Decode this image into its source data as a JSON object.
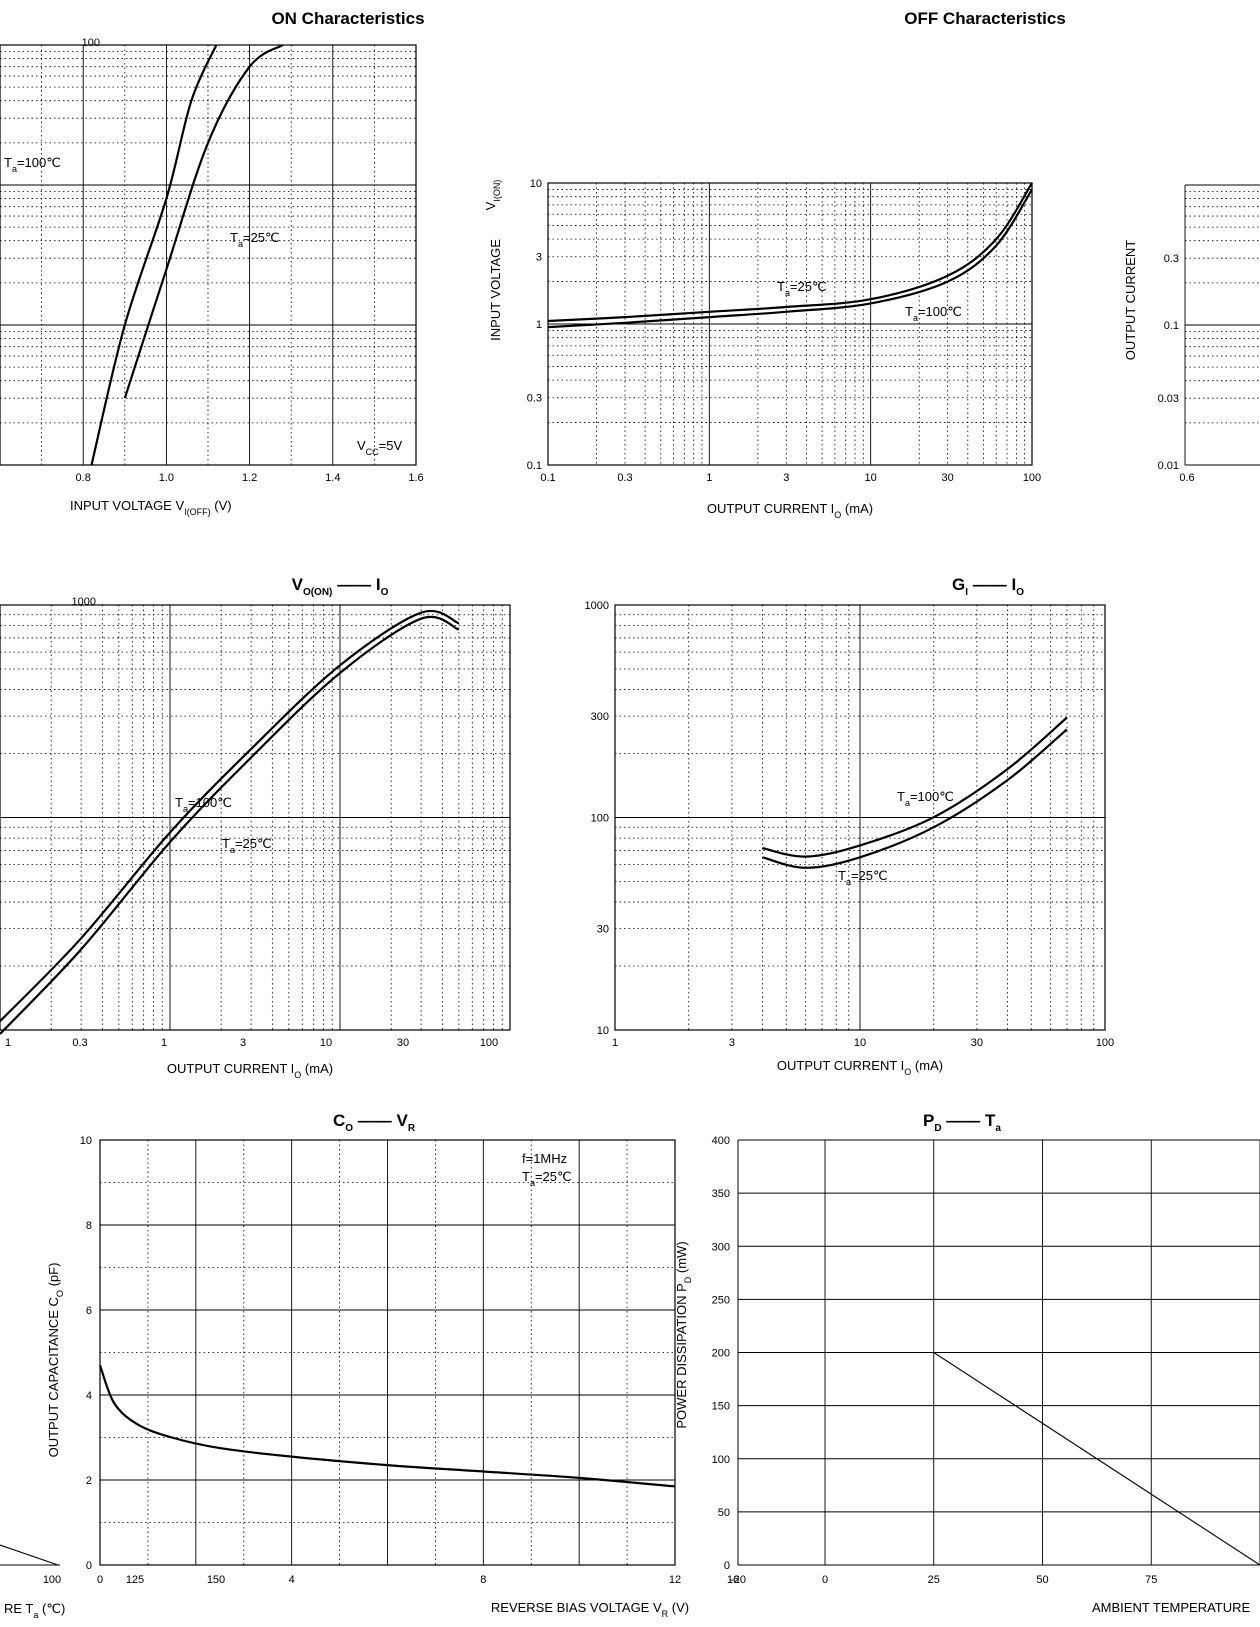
{
  "page": {
    "title_on": "ON Characteristics",
    "title_off": "OFF Characteristics"
  },
  "chart_data": [
    {
      "id": "on_characteristics",
      "type": "line",
      "title": "ON Characteristics",
      "xlabel": "INPUT VOLTAGE",
      "xlabel_symbol": "V",
      "xlabel_sub": "I(OFF)",
      "xlabel_unit": "(V)",
      "x_scale": "linear",
      "y_scale": "log",
      "xlim": [
        0.8,
        1.6
      ],
      "ylim": [
        0.1,
        100
      ],
      "x_ticks": [
        "0.8",
        "1.0",
        "1.2",
        "1.4",
        "1.6"
      ],
      "y_ticks": [
        "100"
      ],
      "annotations": {
        "cond": "=5V",
        "cond_sym": "V",
        "cond_sub": "CC",
        "t25": "=25℃",
        "t100": "=100℃",
        "tsym": "T",
        "tsub": "a"
      },
      "series": [
        {
          "label": "T=25℃",
          "x": [
            0.9,
            1.0,
            1.1,
            1.2,
            1.28
          ],
          "y": [
            0.3,
            2.5,
            20,
            70,
            100
          ]
        },
        {
          "label": "T=100℃",
          "x": [
            0.82,
            0.9,
            1.0,
            1.06,
            1.12
          ],
          "y": [
            0.1,
            1,
            8,
            40,
            100
          ]
        }
      ]
    },
    {
      "id": "vin_on_vs_io",
      "type": "line",
      "title": "",
      "xlabel": "OUTPUT CURRENT",
      "xlabel_symbol": "I",
      "xlabel_sub": "O",
      "xlabel_unit": "(mA)",
      "ylabel": "INPUT VOLTAGE",
      "ylabel_symbol": "V",
      "ylabel_sub": "I(ON)",
      "x_scale": "log",
      "y_scale": "log",
      "xlim": [
        0.1,
        100
      ],
      "ylim": [
        0.1,
        10
      ],
      "x_ticks": [
        "0.1",
        "0.3",
        "1",
        "3",
        "10",
        "30",
        "100"
      ],
      "y_ticks": [
        "0.1",
        "0.3",
        "1",
        "3",
        "10"
      ],
      "annotations": {
        "t25": "=25℃",
        "t100": "=100℃",
        "tsym": "T",
        "tsub": "a"
      },
      "series": [
        {
          "label": "T=25℃",
          "x": [
            0.1,
            0.3,
            1,
            3,
            10,
            30,
            60,
            100
          ],
          "y": [
            1.05,
            1.12,
            1.22,
            1.32,
            1.5,
            2.2,
            4.0,
            10
          ]
        },
        {
          "label": "T=100℃",
          "x": [
            0.1,
            0.3,
            1,
            3,
            10,
            30,
            60,
            100
          ],
          "y": [
            0.95,
            1.02,
            1.12,
            1.22,
            1.4,
            2.0,
            3.6,
            9
          ]
        }
      ]
    },
    {
      "id": "off_current_partial",
      "type": "line",
      "title": "",
      "ylabel": "OUTPUT CURRENT",
      "x_scale": "linear",
      "y_scale": "log",
      "ylim": [
        0.01,
        1
      ],
      "x_ticks": [
        "0.6"
      ],
      "y_ticks": [
        "0.01",
        "0.03",
        "0.1",
        "0.3"
      ],
      "series": []
    },
    {
      "id": "vo_on_vs_io",
      "type": "line",
      "title": "V",
      "title_sub": "O(ON)",
      "title_dash": "——",
      "title_right": "I",
      "title_right_sub": "O",
      "xlabel": "OUTPUT CURRENT",
      "xlabel_symbol": "I",
      "xlabel_sub": "O",
      "xlabel_unit": "(mA)",
      "x_scale": "log",
      "y_scale": "log",
      "xlim": [
        0.1,
        100
      ],
      "y_ticks": [
        "1000"
      ],
      "x_ticks": [
        "1",
        "0.3",
        "1",
        "3",
        "10",
        "30",
        "100"
      ],
      "annotations": {
        "t25": "=25℃",
        "t100": "=100℃",
        "tsym": "T",
        "tsub": "a"
      },
      "series": [
        {
          "label": "T=25℃",
          "x": [
            0.1,
            0.3,
            1,
            3,
            10,
            30,
            50
          ],
          "y": [
            10,
            25,
            80,
            200,
            500,
            900,
            800
          ]
        },
        {
          "label": "T=100℃",
          "x": [
            0.1,
            0.3,
            1,
            3,
            10,
            30,
            50
          ],
          "y": [
            11,
            27,
            85,
            210,
            520,
            920,
            820
          ]
        }
      ]
    },
    {
      "id": "gi_vs_io",
      "type": "line",
      "title": "G",
      "title_sub": "I",
      "title_dash": "——",
      "title_right": "I",
      "title_right_sub": "O",
      "xlabel": "OUTPUT CURRENT",
      "xlabel_symbol": "I",
      "xlabel_sub": "O",
      "xlabel_unit": "(mA)",
      "x_scale": "log",
      "y_scale": "log",
      "xlim": [
        1,
        100
      ],
      "ylim": [
        10,
        1000
      ],
      "x_ticks": [
        "1",
        "3",
        "10",
        "30",
        "100"
      ],
      "y_ticks": [
        "10",
        "30",
        "100",
        "300",
        "1000"
      ],
      "annotations": {
        "t25": "=25℃",
        "t100": "=100℃",
        "tsym": "T",
        "tsub": "a"
      },
      "series": [
        {
          "label": "T=25℃",
          "x": [
            4,
            6,
            10,
            20,
            40,
            70
          ],
          "y": [
            65,
            58,
            65,
            90,
            150,
            260
          ]
        },
        {
          "label": "T=100℃",
          "x": [
            4,
            6,
            10,
            20,
            40,
            70
          ],
          "y": [
            68,
            62,
            70,
            95,
            160,
            280
          ]
        }
      ]
    },
    {
      "id": "co_vs_vr",
      "type": "line",
      "title": "C",
      "title_sub": "O",
      "title_dash": "——",
      "title_right": "V",
      "title_right_sub": "R",
      "xlabel": "REVERSE BIAS VOLTAGE",
      "xlabel_symbol": "V",
      "xlabel_sub": "R",
      "xlabel_unit": "(V)",
      "ylabel": "OUTPUT CAPACITANCE",
      "ylabel_symbol": "C",
      "ylabel_sub": "O",
      "ylabel_unit": "(pF)",
      "x_scale": "linear",
      "y_scale": "linear",
      "xlim": [
        0,
        12
      ],
      "ylim": [
        0,
        10
      ],
      "y_ticks": [
        "0",
        "2",
        "4",
        "6",
        "8",
        "10"
      ],
      "x_ticks": [
        "0",
        "4",
        "8",
        "12",
        "16"
      ],
      "annotations": {
        "freq": "f=1MHz",
        "t25": "=25℃",
        "tsym": "T",
        "tsub": "a"
      },
      "series": [
        {
          "label": "",
          "x": [
            0,
            0.3,
            0.8,
            1.5,
            2.5,
            4,
            6,
            8,
            10,
            12
          ],
          "y": [
            4.7,
            3.8,
            3.3,
            3.0,
            2.75,
            2.55,
            2.35,
            2.2,
            2.05,
            1.85
          ]
        }
      ]
    },
    {
      "id": "pd_vs_ta",
      "type": "line",
      "title": "P",
      "title_sub": "D",
      "title_dash": "——",
      "title_right": "T",
      "title_right_sub": "a",
      "xlabel": "AMBIENT TEMPERATURE",
      "ylabel": "POWER DISSIPATION",
      "ylabel_symbol": "P",
      "ylabel_sub": "D",
      "ylabel_unit": "(mW)",
      "x_scale": "linear",
      "y_scale": "linear",
      "xlim": [
        -20,
        100
      ],
      "ylim": [
        0,
        400
      ],
      "y_ticks": [
        "0",
        "50",
        "100",
        "150",
        "200",
        "250",
        "300",
        "350",
        "400"
      ],
      "x_ticks": [
        "-20",
        "0",
        "25",
        "50",
        "75"
      ],
      "series": [
        {
          "label": "",
          "x": [
            -20,
            25,
            100
          ],
          "y": [
            200,
            200,
            0
          ]
        }
      ]
    },
    {
      "id": "left_partial_bottom",
      "type": "line",
      "title": "",
      "xlabel": "RE",
      "xlabel_symbol": "T",
      "xlabel_sub": "a",
      "xlabel_unit": "(℃)",
      "x_ticks": [
        "100",
        "125",
        "150"
      ],
      "series": []
    }
  ]
}
